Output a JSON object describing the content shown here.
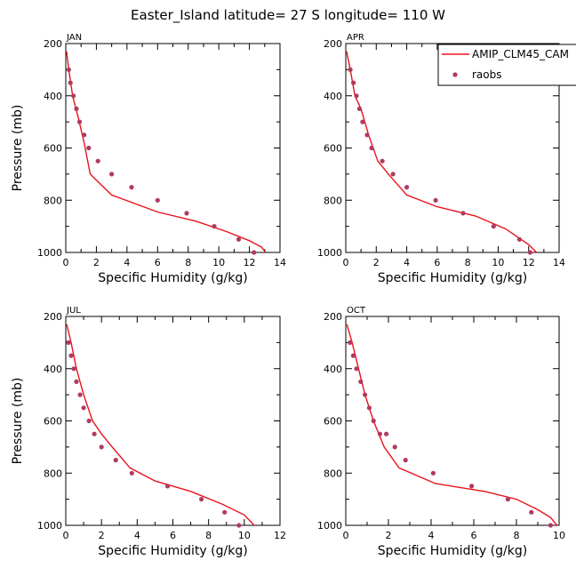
{
  "title": "Easter_Island  latitude= 27 S longitude= 110 W",
  "colors": {
    "model": "#e8131b",
    "obs": "#b03a60",
    "axis": "#000000"
  },
  "legend": {
    "model_label": "AMIP_CLM45_CAM",
    "obs_label": "raobs",
    "placement": "top-right of APR panel"
  },
  "chart_data": [
    {
      "type": "line",
      "title": "JAN",
      "xlabel": "Specific Humidity (g/kg)",
      "ylabel": "Pressure (mb)",
      "xlim": [
        0,
        14
      ],
      "ylim": [
        200,
        1000
      ],
      "y_inverted": true,
      "xticks": [
        0,
        2,
        4,
        6,
        8,
        10,
        12,
        14
      ],
      "yticks": [
        200,
        400,
        600,
        800,
        1000
      ],
      "series": [
        {
          "name": "AMIP_CLM45_CAM",
          "kind": "line",
          "x": [
            0.05,
            0.2,
            0.45,
            0.8,
            1.2,
            1.6,
            3.0,
            6.0,
            8.5,
            10.5,
            12.0,
            12.8,
            13.2
          ],
          "y": [
            230,
            300,
            400,
            480,
            580,
            700,
            780,
            845,
            880,
            920,
            955,
            980,
            1010
          ]
        },
        {
          "name": "raobs",
          "kind": "scatter",
          "x": [
            0.2,
            0.3,
            0.5,
            0.7,
            0.9,
            1.2,
            1.5,
            2.1,
            3.0,
            4.3,
            6.0,
            7.9,
            9.7,
            11.3,
            12.3
          ],
          "y": [
            300,
            350,
            400,
            450,
            500,
            550,
            600,
            650,
            700,
            750,
            800,
            850,
            900,
            950,
            1000
          ]
        }
      ]
    },
    {
      "type": "line",
      "title": "APR",
      "xlabel": "Specific Humidity (g/kg)",
      "ylabel": "",
      "xlim": [
        0,
        14
      ],
      "ylim": [
        200,
        1000
      ],
      "y_inverted": true,
      "xticks": [
        0,
        2,
        4,
        6,
        8,
        10,
        12,
        14
      ],
      "yticks": [
        200,
        400,
        600,
        800,
        1000
      ],
      "series": [
        {
          "name": "AMIP_CLM45_CAM",
          "kind": "line",
          "x": [
            0.05,
            0.3,
            0.6,
            1.0,
            1.5,
            2.1,
            2.8,
            4.0,
            6.0,
            8.5,
            10.5,
            12.0,
            12.7
          ],
          "y": [
            230,
            300,
            400,
            450,
            550,
            650,
            700,
            780,
            825,
            860,
            910,
            970,
            1010
          ]
        },
        {
          "name": "raobs",
          "kind": "scatter",
          "x": [
            0.3,
            0.5,
            0.7,
            0.9,
            1.1,
            1.4,
            1.7,
            2.4,
            3.1,
            4.0,
            5.9,
            7.7,
            9.7,
            11.4,
            12.1
          ],
          "y": [
            300,
            350,
            400,
            450,
            500,
            550,
            600,
            650,
            700,
            750,
            800,
            850,
            900,
            950,
            1000
          ]
        }
      ]
    },
    {
      "type": "line",
      "title": "JUL",
      "xlabel": "Specific Humidity (g/kg)",
      "ylabel": "Pressure (mb)",
      "xlim": [
        0,
        12
      ],
      "ylim": [
        200,
        1000
      ],
      "y_inverted": true,
      "xticks": [
        0,
        2,
        4,
        6,
        8,
        10,
        12
      ],
      "yticks": [
        200,
        400,
        600,
        800,
        1000
      ],
      "series": [
        {
          "name": "AMIP_CLM45_CAM",
          "kind": "line",
          "x": [
            0.05,
            0.3,
            0.6,
            1.0,
            1.5,
            2.0,
            2.6,
            3.6,
            5.0,
            7.0,
            8.8,
            10.0,
            10.7
          ],
          "y": [
            230,
            300,
            400,
            500,
            600,
            650,
            700,
            780,
            830,
            870,
            920,
            960,
            1010
          ]
        },
        {
          "name": "raobs",
          "kind": "scatter",
          "x": [
            0.15,
            0.3,
            0.45,
            0.6,
            0.8,
            1.0,
            1.3,
            1.6,
            2.0,
            2.8,
            3.7,
            5.7,
            7.6,
            8.9,
            9.7
          ],
          "y": [
            300,
            350,
            400,
            450,
            500,
            550,
            600,
            650,
            700,
            750,
            800,
            850,
            900,
            950,
            1000
          ]
        }
      ]
    },
    {
      "type": "line",
      "title": "OCT",
      "xlabel": "Specific Humidity (g/kg)",
      "ylabel": "",
      "xlim": [
        0,
        10
      ],
      "ylim": [
        200,
        1000
      ],
      "y_inverted": true,
      "xticks": [
        0,
        2,
        4,
        6,
        8,
        10
      ],
      "yticks": [
        200,
        400,
        600,
        800,
        1000
      ],
      "series": [
        {
          "name": "AMIP_CLM45_CAM",
          "kind": "line",
          "x": [
            0.05,
            0.3,
            0.6,
            0.9,
            1.3,
            1.8,
            2.5,
            4.2,
            6.5,
            8.0,
            9.0,
            9.6,
            10.0
          ],
          "y": [
            230,
            300,
            400,
            500,
            600,
            700,
            780,
            840,
            870,
            900,
            940,
            970,
            1010
          ]
        },
        {
          "name": "raobs",
          "kind": "scatter",
          "x": [
            0.2,
            0.35,
            0.5,
            0.7,
            0.9,
            1.1,
            1.3,
            1.6,
            1.9,
            2.3,
            2.8,
            4.1,
            5.9,
            7.6,
            8.7,
            9.6
          ],
          "y": [
            300,
            350,
            400,
            450,
            500,
            550,
            600,
            650,
            650,
            700,
            750,
            800,
            850,
            900,
            950,
            1000
          ]
        }
      ]
    }
  ]
}
